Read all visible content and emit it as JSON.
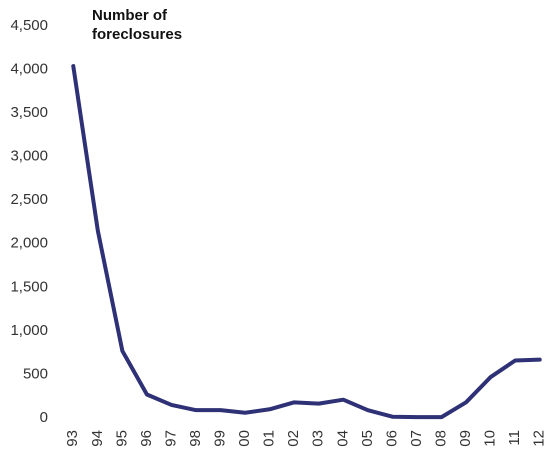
{
  "chart_data": {
    "type": "line",
    "title": "Number of foreclosures",
    "categories": [
      "93",
      "94",
      "95",
      "96",
      "97",
      "98",
      "99",
      "00",
      "01",
      "02",
      "03",
      "04",
      "05",
      "06",
      "07",
      "08",
      "09",
      "10",
      "11",
      "12"
    ],
    "series": [
      {
        "name": "Number of foreclosures",
        "color": "#2e3175",
        "values": [
          4040,
          2150,
          770,
          270,
          150,
          90,
          90,
          60,
          100,
          180,
          165,
          210,
          90,
          15,
          10,
          10,
          180,
          470,
          660,
          670
        ]
      }
    ],
    "ylim": [
      0,
      4500
    ],
    "yticks": [
      0,
      500,
      {
        "value": 1000,
        "label": "1,000"
      },
      {
        "value": 1500,
        "label": "1,500"
      },
      {
        "value": 2000,
        "label": "2,000"
      },
      {
        "value": 2500,
        "label": "2,500"
      },
      {
        "value": 3000,
        "label": "3,000"
      },
      {
        "value": 3500,
        "label": "3,500"
      },
      {
        "value": 4000,
        "label": "4,000"
      },
      {
        "value": 4500,
        "label": "4,500"
      }
    ],
    "grid": false
  }
}
